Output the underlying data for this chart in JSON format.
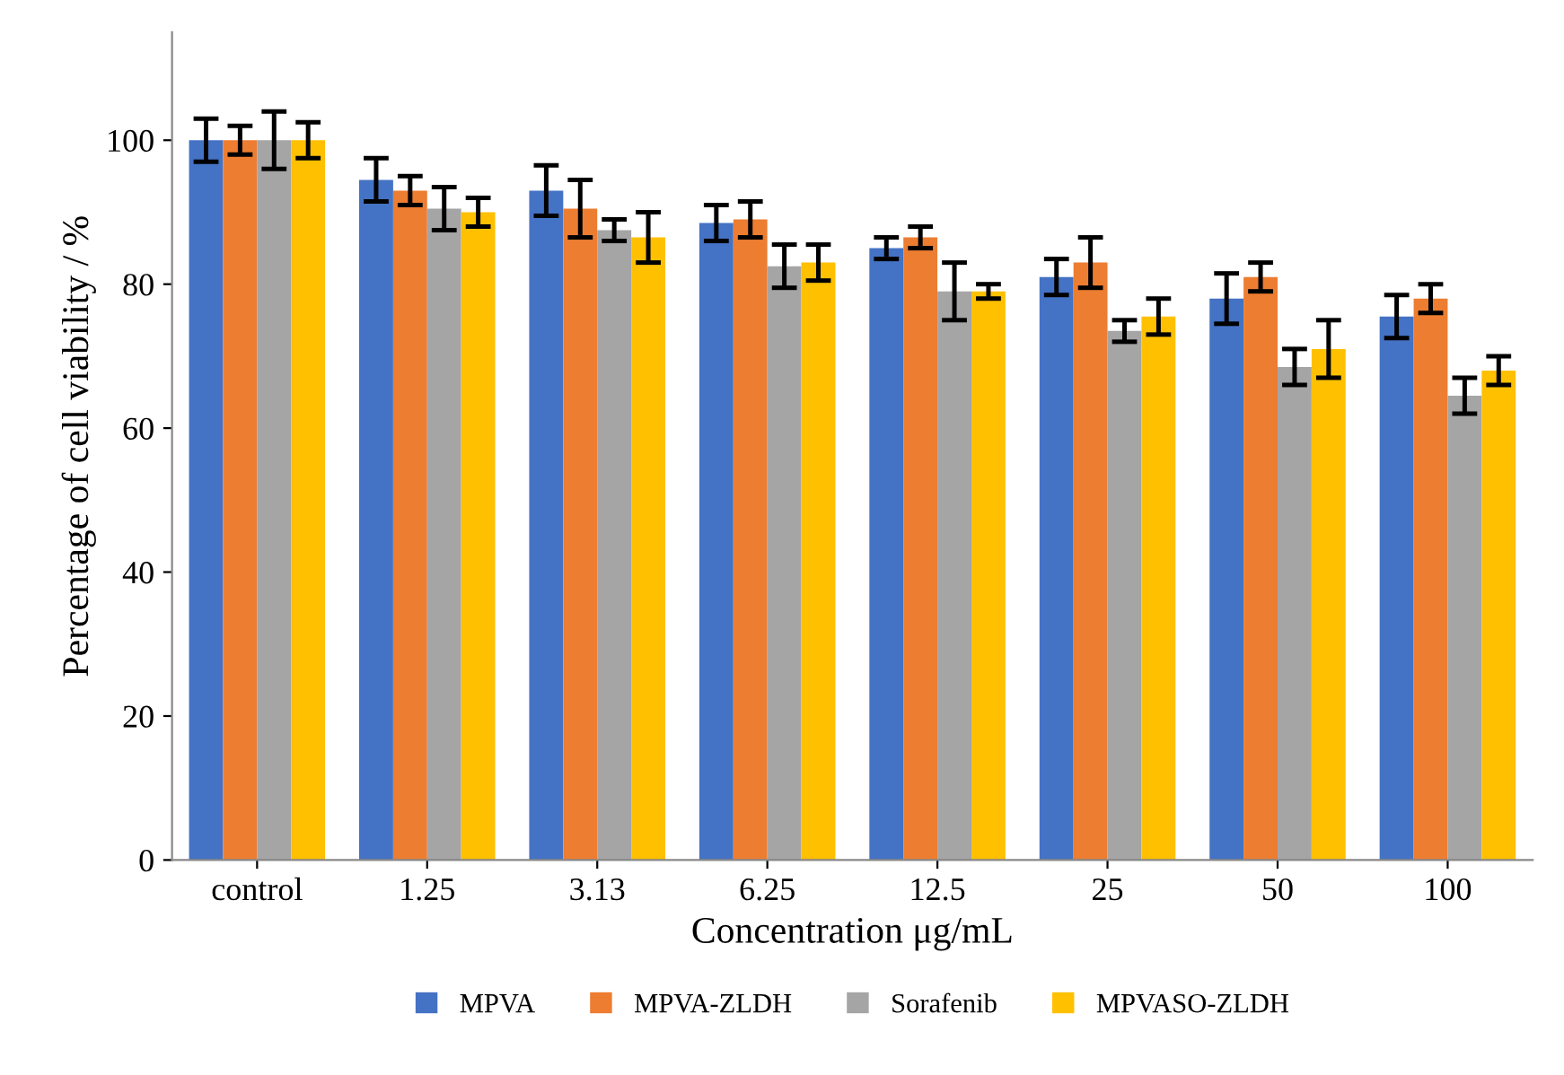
{
  "chart_data": {
    "type": "bar",
    "xlabel": "Concentration μg/mL",
    "ylabel": "Percentage of cell viability / %",
    "categories": [
      "control",
      "1.25",
      "3.13",
      "6.25",
      "12.5",
      "25",
      "50",
      "100"
    ],
    "series": [
      {
        "name": "MPVA",
        "color": "#4472c4",
        "values": [
          100,
          94.5,
          93,
          88.5,
          85,
          81,
          78,
          75.5
        ],
        "errors": [
          3,
          3,
          3.5,
          2.5,
          1.5,
          2.5,
          3.5,
          3
        ]
      },
      {
        "name": "MPVA-ZLDH",
        "color": "#ed7d31",
        "values": [
          100,
          93,
          90.5,
          89,
          86.5,
          83,
          81,
          78
        ],
        "errors": [
          2,
          2,
          4,
          2.5,
          1.5,
          3.5,
          2,
          2
        ]
      },
      {
        "name": "Sorafenib",
        "color": "#a5a5a5",
        "values": [
          100,
          90.5,
          87.5,
          82.5,
          79,
          73.5,
          68.5,
          64.5
        ],
        "errors": [
          4,
          3,
          1.5,
          3,
          4,
          1.5,
          2.5,
          2.5
        ]
      },
      {
        "name": "MPVASO-ZLDH",
        "color": "#ffc000",
        "values": [
          100,
          90,
          86.5,
          83,
          79,
          75.5,
          71,
          68
        ],
        "errors": [
          2.5,
          2,
          3.5,
          2.5,
          1,
          2.5,
          4,
          2
        ]
      }
    ],
    "ylim": [
      0,
      115
    ],
    "yticks": [
      0,
      20,
      40,
      60,
      80,
      100
    ],
    "grid": false,
    "legend": "bottom"
  }
}
